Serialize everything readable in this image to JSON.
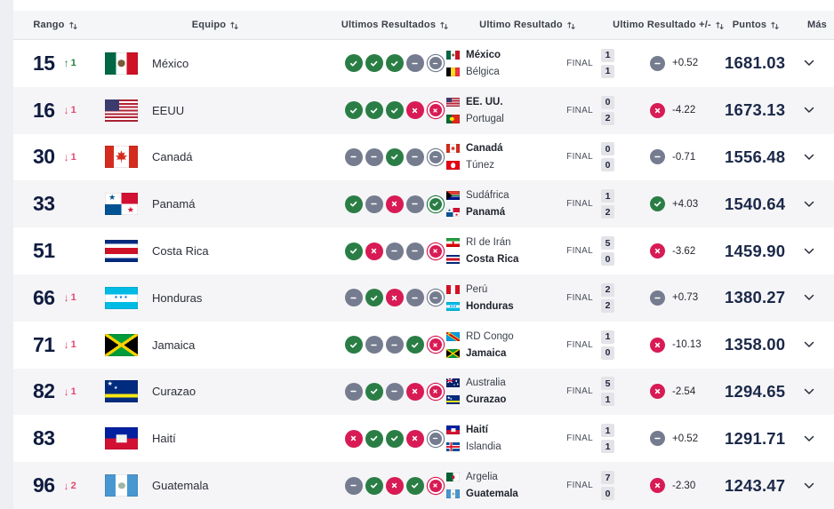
{
  "header": {
    "columns": [
      {
        "label": "Rango",
        "sortable": true
      },
      {
        "label": "Equipo",
        "sortable": true
      },
      {
        "label": "Ultimos Resultados",
        "sortable": true
      },
      {
        "label": "Ultimo Resultado",
        "sortable": true
      },
      {
        "label": "Ultimo Resultado +/-",
        "sortable": true
      },
      {
        "label": "Puntos",
        "sortable": true
      },
      {
        "label": "Más",
        "sortable": false
      }
    ]
  },
  "icons": {
    "win": "check-circle-icon",
    "draw": "minus-circle-icon",
    "loss": "x-circle-icon",
    "sort": "sort-arrows-icon",
    "expand": "chevron-down-icon"
  },
  "colors": {
    "win_green": "#2a7e45",
    "loss_red": "#d81b55",
    "draw_gray": "#757c8f",
    "up_green": "#23803c",
    "down_pink": "#e4476f",
    "rank_navy": "#0f1c3f",
    "points_navy": "#1b2849",
    "row_alt": "#f5f5f7"
  },
  "table": {
    "rows": [
      {
        "rank": "15",
        "change": {
          "dir": "up",
          "value": "1"
        },
        "team": {
          "name": "México",
          "flag": "mx"
        },
        "recent_results": [
          "W",
          "W",
          "W",
          "D",
          "D*"
        ],
        "last_match": {
          "status": "FINAL",
          "teams": [
            {
              "name": "México",
              "flag": "mx",
              "strong": true,
              "score": "1"
            },
            {
              "name": "Bélgica",
              "flag": "be",
              "strong": false,
              "score": "1"
            }
          ]
        },
        "delta": {
          "result": "D",
          "value": "+0.52"
        },
        "points": "1681.03"
      },
      {
        "rank": "16",
        "change": {
          "dir": "down",
          "value": "1"
        },
        "team": {
          "name": "EEUU",
          "flag": "us"
        },
        "recent_results": [
          "W",
          "W",
          "W",
          "L",
          "L*"
        ],
        "last_match": {
          "status": "FINAL",
          "teams": [
            {
              "name": "EE. UU.",
              "flag": "us",
              "strong": true,
              "score": "0"
            },
            {
              "name": "Portugal",
              "flag": "pt",
              "strong": false,
              "score": "2"
            }
          ]
        },
        "delta": {
          "result": "L",
          "value": "-4.22"
        },
        "points": "1673.13"
      },
      {
        "rank": "30",
        "change": {
          "dir": "down",
          "value": "1"
        },
        "team": {
          "name": "Canadá",
          "flag": "ca"
        },
        "recent_results": [
          "D",
          "D",
          "W",
          "D",
          "D*"
        ],
        "last_match": {
          "status": "FINAL",
          "teams": [
            {
              "name": "Canadá",
              "flag": "ca",
              "strong": true,
              "score": "0"
            },
            {
              "name": "Túnez",
              "flag": "tn",
              "strong": false,
              "score": "0"
            }
          ]
        },
        "delta": {
          "result": "D",
          "value": "-0.71"
        },
        "points": "1556.48"
      },
      {
        "rank": "33",
        "change": null,
        "team": {
          "name": "Panamá",
          "flag": "pa"
        },
        "recent_results": [
          "W",
          "D",
          "L",
          "D",
          "W*"
        ],
        "last_match": {
          "status": "FINAL",
          "teams": [
            {
              "name": "Sudáfrica",
              "flag": "za",
              "strong": false,
              "score": "1"
            },
            {
              "name": "Panamá",
              "flag": "pa",
              "strong": true,
              "score": "2"
            }
          ]
        },
        "delta": {
          "result": "W",
          "value": "+4.03"
        },
        "points": "1540.64"
      },
      {
        "rank": "51",
        "change": null,
        "team": {
          "name": "Costa Rica",
          "flag": "cr"
        },
        "recent_results": [
          "W",
          "L",
          "D",
          "D",
          "L*"
        ],
        "last_match": {
          "status": "FINAL",
          "teams": [
            {
              "name": "RI de Irán",
              "flag": "ir",
              "strong": false,
              "score": "5"
            },
            {
              "name": "Costa Rica",
              "flag": "cr",
              "strong": true,
              "score": "0"
            }
          ]
        },
        "delta": {
          "result": "L",
          "value": "-3.62"
        },
        "points": "1459.90"
      },
      {
        "rank": "66",
        "change": {
          "dir": "down",
          "value": "1"
        },
        "team": {
          "name": "Honduras",
          "flag": "hn"
        },
        "recent_results": [
          "D",
          "W",
          "L",
          "D",
          "D*"
        ],
        "last_match": {
          "status": "FINAL",
          "teams": [
            {
              "name": "Perú",
              "flag": "pe",
              "strong": false,
              "score": "2"
            },
            {
              "name": "Honduras",
              "flag": "hn",
              "strong": true,
              "score": "2"
            }
          ]
        },
        "delta": {
          "result": "D",
          "value": "+0.73"
        },
        "points": "1380.27"
      },
      {
        "rank": "71",
        "change": {
          "dir": "down",
          "value": "1"
        },
        "team": {
          "name": "Jamaica",
          "flag": "jm"
        },
        "recent_results": [
          "W",
          "D",
          "D",
          "W",
          "L*"
        ],
        "last_match": {
          "status": "FINAL",
          "teams": [
            {
              "name": "RD Congo",
              "flag": "cd",
              "strong": false,
              "score": "1"
            },
            {
              "name": "Jamaica",
              "flag": "jm",
              "strong": true,
              "score": "0"
            }
          ]
        },
        "delta": {
          "result": "L",
          "value": "-10.13"
        },
        "points": "1358.00"
      },
      {
        "rank": "82",
        "change": {
          "dir": "down",
          "value": "1"
        },
        "team": {
          "name": "Curazao",
          "flag": "cw"
        },
        "recent_results": [
          "D",
          "W",
          "D",
          "L",
          "L*"
        ],
        "last_match": {
          "status": "FINAL",
          "teams": [
            {
              "name": "Australia",
              "flag": "au",
              "strong": false,
              "score": "5"
            },
            {
              "name": "Curazao",
              "flag": "cw",
              "strong": true,
              "score": "1"
            }
          ]
        },
        "delta": {
          "result": "L",
          "value": "-2.54"
        },
        "points": "1294.65"
      },
      {
        "rank": "83",
        "change": null,
        "team": {
          "name": "Haití",
          "flag": "ht"
        },
        "recent_results": [
          "L",
          "W",
          "W",
          "L",
          "D*"
        ],
        "last_match": {
          "status": "FINAL",
          "teams": [
            {
              "name": "Haití",
              "flag": "ht",
              "strong": true,
              "score": "1"
            },
            {
              "name": "Islandia",
              "flag": "is",
              "strong": false,
              "score": "1"
            }
          ]
        },
        "delta": {
          "result": "D",
          "value": "+0.52"
        },
        "points": "1291.71"
      },
      {
        "rank": "96",
        "change": {
          "dir": "down",
          "value": "2"
        },
        "team": {
          "name": "Guatemala",
          "flag": "gt"
        },
        "recent_results": [
          "D",
          "W",
          "L",
          "W",
          "L*"
        ],
        "last_match": {
          "status": "FINAL",
          "teams": [
            {
              "name": "Argelia",
              "flag": "dz",
              "strong": false,
              "score": "7"
            },
            {
              "name": "Guatemala",
              "flag": "gt",
              "strong": true,
              "score": "0"
            }
          ]
        },
        "delta": {
          "result": "L",
          "value": "-2.30"
        },
        "points": "1243.47"
      }
    ]
  }
}
